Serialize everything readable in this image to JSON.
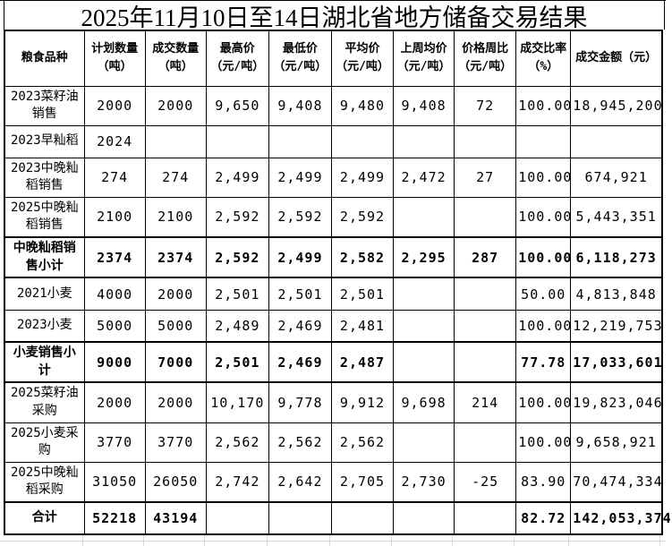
{
  "title": "2025年11月10日至14日湖北省地方储备交易结果",
  "colors": {
    "border": "#000000",
    "faint_grid": "#d9d9d9",
    "background": "#ffffff",
    "text": "#000000"
  },
  "table": {
    "columns": [
      "粮食品种",
      "计划数量\n（吨）",
      "成交数量\n（吨）",
      "最高价\n（元/吨）",
      "最低价\n（元/吨）",
      "平均价\n（元/吨）",
      "上周均价\n（元/吨）",
      "价格周比\n（元/吨）",
      "成交比率\n（%）",
      "成交金额（元）"
    ],
    "rows": [
      {
        "name": "2023菜籽油销售",
        "bold": false,
        "values": [
          "2000",
          "2000",
          "9,650",
          "9,408",
          "9,480",
          "9,408",
          "72",
          "100.00",
          "18,945,200"
        ]
      },
      {
        "name": "2023早籼稻",
        "bold": false,
        "values": [
          "2024",
          "",
          "",
          "",
          "",
          "",
          "",
          "",
          ""
        ]
      },
      {
        "name": "2023中晚籼稻销售",
        "bold": false,
        "values": [
          "274",
          "274",
          "2,499",
          "2,499",
          "2,499",
          "2,472",
          "27",
          "100.00",
          "674,921"
        ]
      },
      {
        "name": "2025中晚籼稻销售",
        "bold": false,
        "values": [
          "2100",
          "2100",
          "2,592",
          "2,592",
          "2,592",
          "",
          "",
          "100.00",
          "5,443,351"
        ]
      },
      {
        "name": "中晚籼稻销售小计",
        "bold": true,
        "values": [
          "2374",
          "2374",
          "2,592",
          "2,499",
          "2,582",
          "2,295",
          "287",
          "100.00",
          "6,118,273"
        ]
      },
      {
        "name": "2021小麦",
        "bold": false,
        "values": [
          "4000",
          "2000",
          "2,501",
          "2,501",
          "2,501",
          "",
          "",
          "50.00",
          "4,813,848"
        ]
      },
      {
        "name": "2023小麦",
        "bold": false,
        "values": [
          "5000",
          "5000",
          "2,489",
          "2,469",
          "2,481",
          "",
          "",
          "100.00",
          "12,219,753"
        ]
      },
      {
        "name": "小麦销售小计",
        "bold": true,
        "values": [
          "9000",
          "7000",
          "2,501",
          "2,469",
          "2,487",
          "",
          "",
          "77.78",
          "17,033,601"
        ]
      },
      {
        "name": "2025菜籽油采购",
        "bold": false,
        "values": [
          "2000",
          "2000",
          "10,170",
          "9,778",
          "9,912",
          "9,698",
          "214",
          "100.00",
          "19,823,046"
        ]
      },
      {
        "name": "2025小麦采购",
        "bold": false,
        "values": [
          "3770",
          "3770",
          "2,562",
          "2,562",
          "2,562",
          "",
          "",
          "100.00",
          "9,658,921"
        ]
      },
      {
        "name": "2025中晚籼稻采购",
        "bold": false,
        "values": [
          "31050",
          "26050",
          "2,742",
          "2,642",
          "2,705",
          "2,730",
          "-25",
          "83.90",
          "70,474,334"
        ]
      },
      {
        "name": "合计",
        "bold": true,
        "values": [
          "52218",
          "43194",
          "",
          "",
          "",
          "",
          "",
          "82.72",
          "142,053,374"
        ]
      }
    ]
  }
}
